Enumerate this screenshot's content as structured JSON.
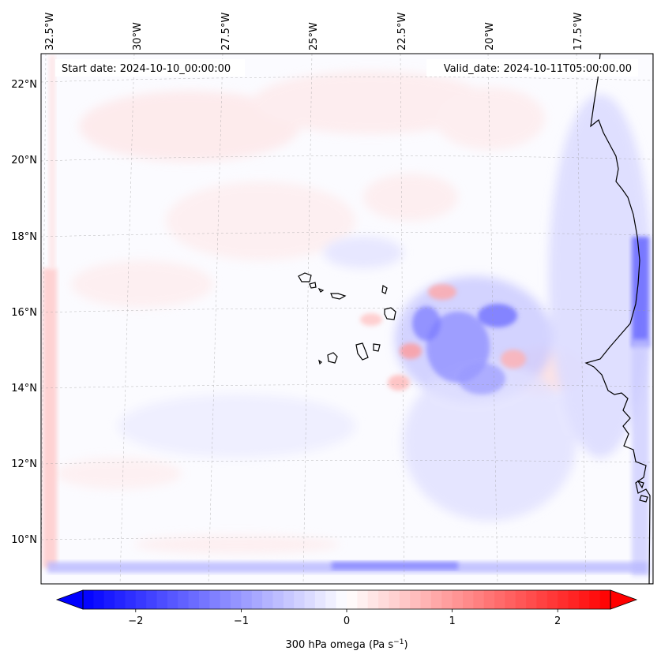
{
  "map": {
    "start_date": "Start date: 2024-10-10_00:00:00",
    "valid_date": "Valid_date: 2024-10-11T05:00:00.00",
    "top_ticks": [
      "32.5°W",
      "30°W",
      "27.5°W",
      "25°W",
      "22.5°W",
      "20°W",
      "17.5°W"
    ],
    "left_ticks": [
      "22°N",
      "20°N",
      "18°N",
      "16°N",
      "14°N",
      "12°N",
      "10°N"
    ],
    "background_color": "#fbfbff"
  },
  "colorbar": {
    "label": "300 hPa omega (Pa s",
    "label_sup": "−1",
    "label_end": ")",
    "ticks": [
      "−2",
      "−1",
      "0",
      "1",
      "2"
    ],
    "vmin": -2.5,
    "vmax": 2.5,
    "tick_values": [
      -2,
      -1,
      0,
      1,
      2
    ],
    "low_color": "#0000ff",
    "mid_color": "#ffffff",
    "high_color": "#ff0000"
  }
}
